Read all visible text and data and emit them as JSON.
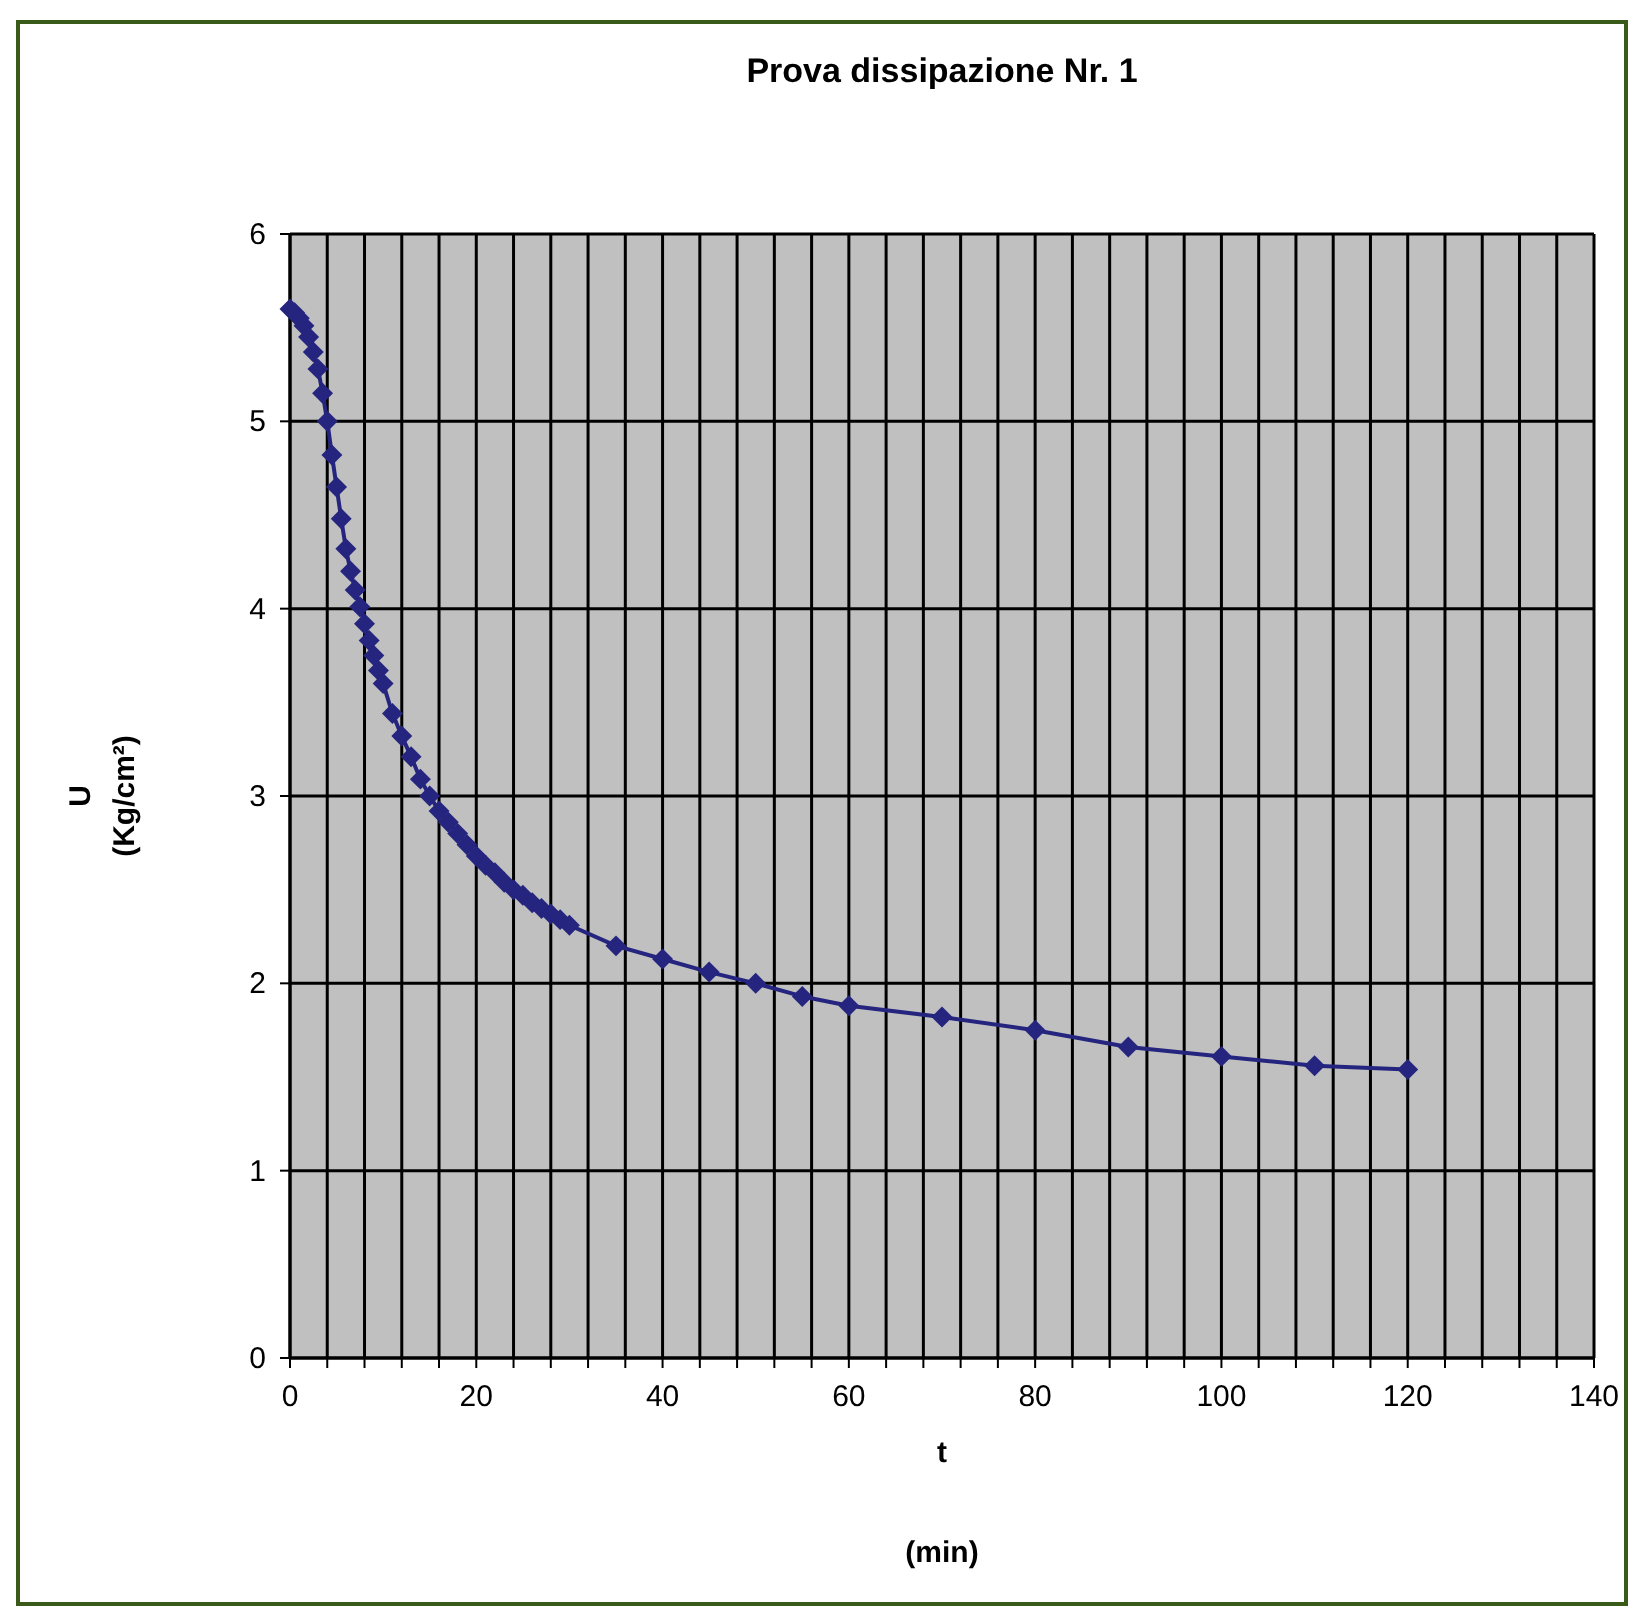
{
  "chart_data": {
    "type": "line",
    "title": "Prova dissipazione Nr. 1",
    "xlabel": "t\n(min)",
    "ylabel": "U\n(Kg/cm²)",
    "series": [
      {
        "color": "#25257f",
        "x": [
          0,
          0.5,
          1,
          1.5,
          2,
          2.5,
          3,
          3.5,
          4,
          4.5,
          5,
          5.5,
          6,
          6.5,
          7,
          7.5,
          8,
          8.5,
          9,
          9.5,
          10,
          11,
          12,
          13,
          14,
          15,
          16,
          17,
          18,
          19,
          20,
          21,
          22,
          23,
          24,
          25,
          26,
          27,
          28,
          29,
          30,
          35,
          40,
          45,
          50,
          55,
          60,
          70,
          80,
          90,
          100,
          110,
          120
        ],
        "values": [
          5.6,
          5.58,
          5.55,
          5.51,
          5.45,
          5.37,
          5.28,
          5.15,
          5.0,
          4.82,
          4.65,
          4.48,
          4.32,
          4.2,
          4.1,
          4.01,
          3.92,
          3.83,
          3.75,
          3.67,
          3.6,
          3.44,
          3.32,
          3.21,
          3.09,
          3.0,
          2.92,
          2.86,
          2.8,
          2.74,
          2.68,
          2.63,
          2.59,
          2.54,
          2.5,
          2.47,
          2.43,
          2.4,
          2.37,
          2.34,
          2.31,
          2.2,
          2.13,
          2.06,
          2.0,
          1.93,
          1.88,
          1.82,
          1.75,
          1.66,
          1.61,
          1.56,
          1.54
        ]
      }
    ],
    "xlim": [
      0,
      140
    ],
    "xticks": [
      0,
      {
        "value": 4,
        "label": null
      },
      {
        "value": 8,
        "label": null
      },
      {
        "value": 12,
        "label": null
      },
      {
        "value": 16,
        "label": null
      },
      20,
      {
        "value": 24,
        "label": null
      },
      {
        "value": 28,
        "label": null
      },
      {
        "value": 32,
        "label": null
      },
      {
        "value": 36,
        "label": null
      },
      40,
      {
        "value": 44,
        "label": null
      },
      {
        "value": 48,
        "label": null
      },
      {
        "value": 52,
        "label": null
      },
      {
        "value": 56,
        "label": null
      },
      60,
      {
        "value": 64,
        "label": null
      },
      {
        "value": 68,
        "label": null
      },
      {
        "value": 72,
        "label": null
      },
      {
        "value": 76,
        "label": null
      },
      80,
      {
        "value": 84,
        "label": null
      },
      {
        "value": 88,
        "label": null
      },
      {
        "value": 92,
        "label": null
      },
      {
        "value": 96,
        "label": null
      },
      100,
      {
        "value": 104,
        "label": null
      },
      {
        "value": 108,
        "label": null
      },
      {
        "value": 112,
        "label": null
      },
      {
        "value": 116,
        "label": null
      },
      120,
      {
        "value": 124,
        "label": null
      },
      {
        "value": 128,
        "label": null
      },
      {
        "value": 132,
        "label": null
      },
      {
        "value": 136,
        "label": null
      },
      140
    ],
    "ylim": [
      0,
      6
    ],
    "yticks": [
      0,
      1,
      2,
      3,
      4,
      5,
      6
    ],
    "grid": true,
    "marker": "diamond",
    "line_style": "solid"
  }
}
